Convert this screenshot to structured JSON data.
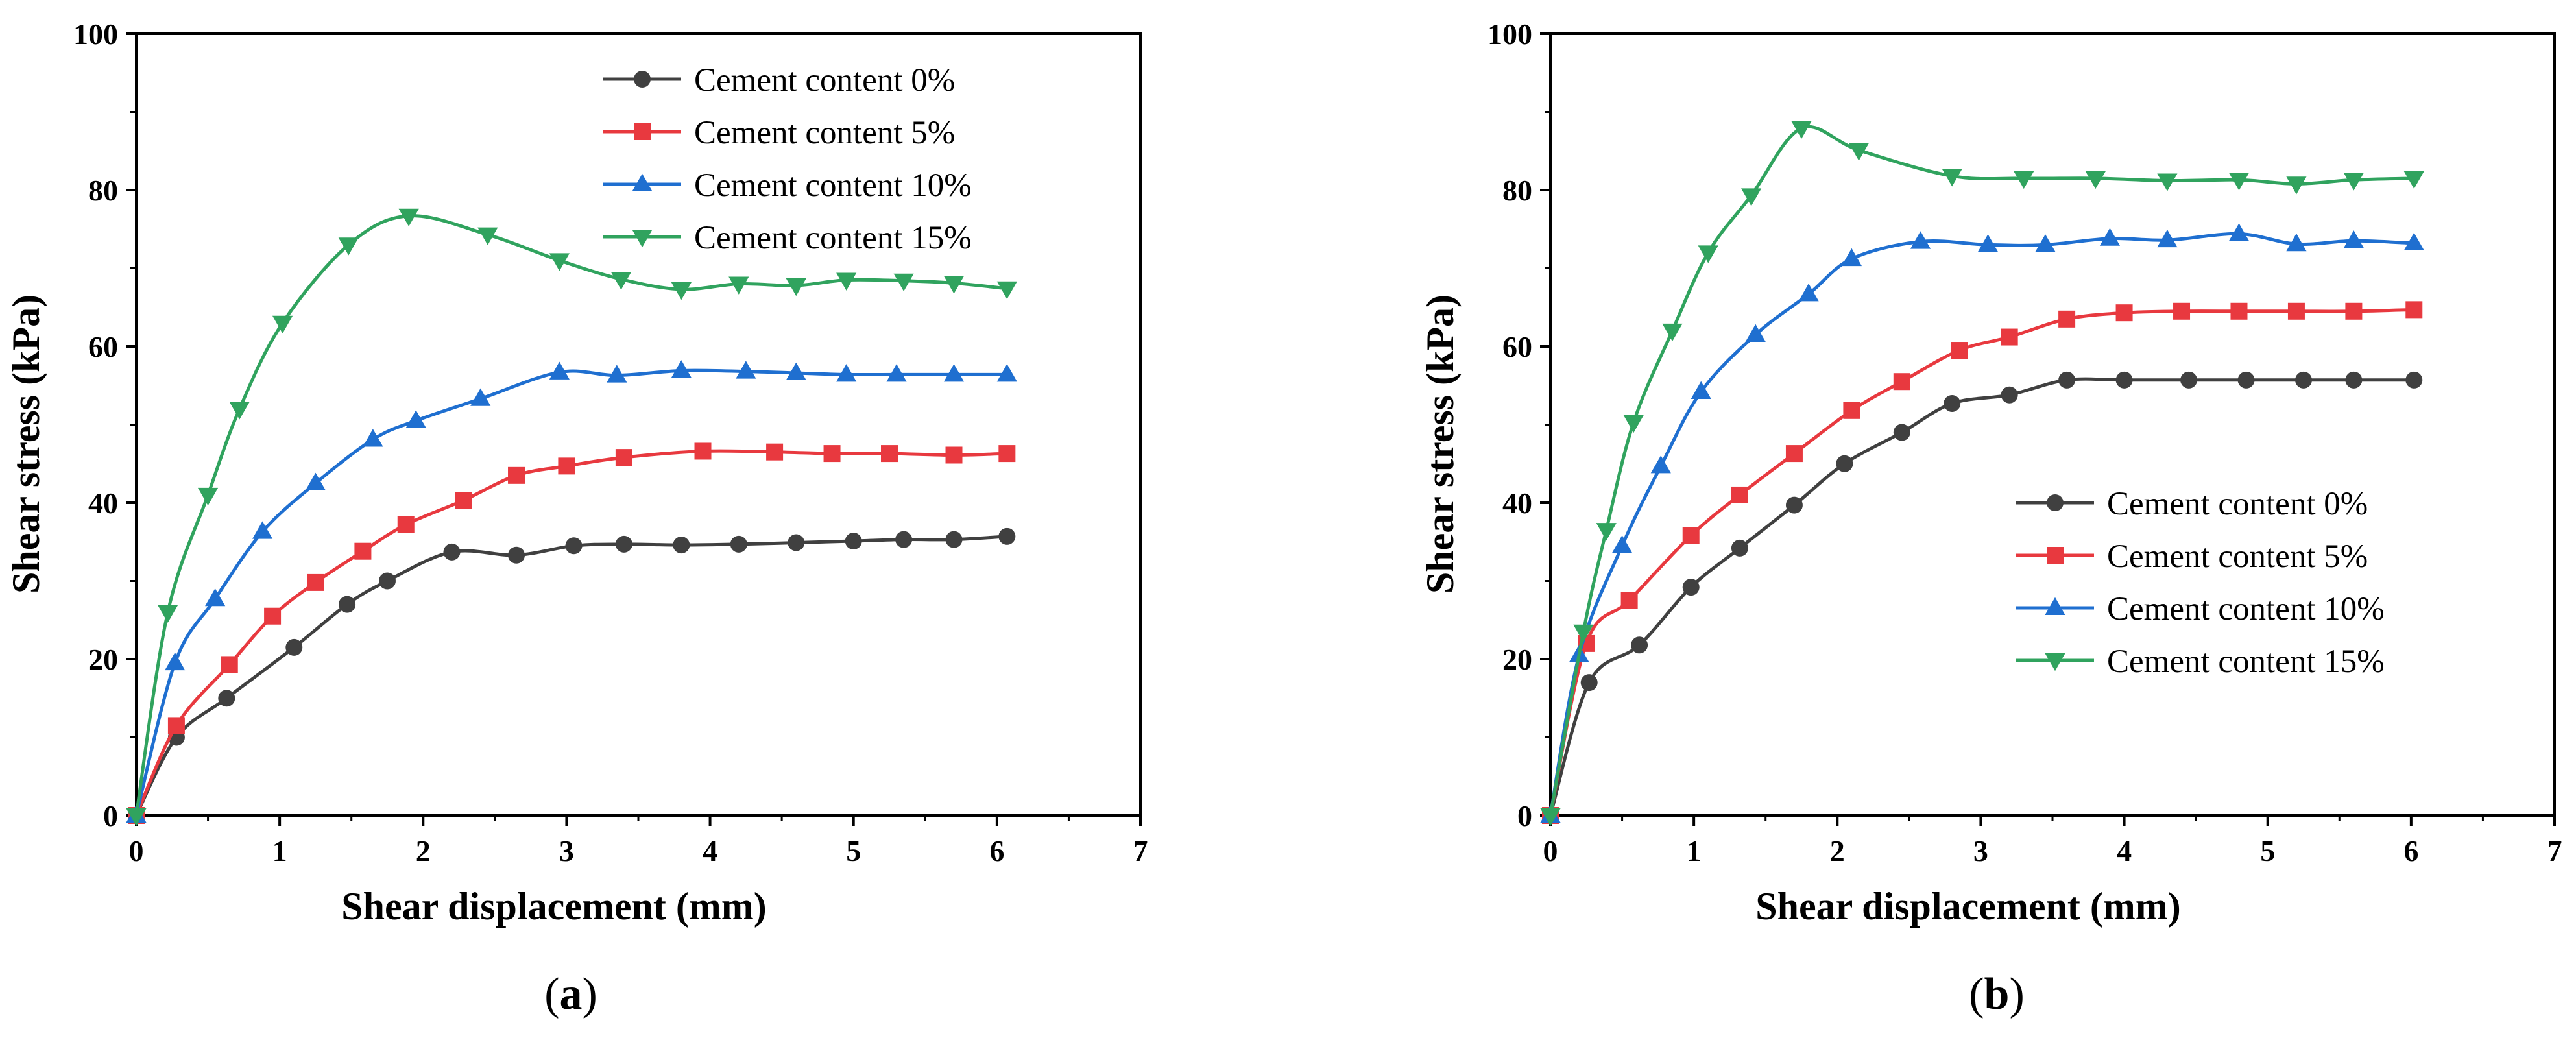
{
  "chart_data": [
    {
      "type": "line",
      "panel_label": "a",
      "xlabel": "Shear displacement (mm)",
      "ylabel": "Shear stress (kPa)",
      "xlim": [
        0,
        7
      ],
      "ylim": [
        0,
        100
      ],
      "xticks": [
        0,
        1,
        2,
        3,
        4,
        5,
        6,
        7
      ],
      "yticks": [
        0,
        20,
        40,
        60,
        80,
        100
      ],
      "legend_position": "top-right",
      "series": [
        {
          "name": "Cement content 0%",
          "color": "#404040",
          "marker": "circle",
          "x": [
            0,
            0.28,
            0.63,
            1.1,
            1.47,
            1.75,
            2.2,
            2.65,
            3.05,
            3.4,
            3.8,
            4.2,
            4.6,
            5.0,
            5.35,
            5.7,
            6.07
          ],
          "y": [
            0,
            10,
            15,
            21.5,
            27,
            30,
            33.7,
            33.3,
            34.5,
            34.7,
            34.6,
            34.7,
            34.9,
            35.1,
            35.3,
            35.3,
            35.7
          ]
        },
        {
          "name": "Cement content 5%",
          "color": "#e8393f",
          "marker": "square",
          "x": [
            0,
            0.28,
            0.65,
            0.95,
            1.25,
            1.58,
            1.88,
            2.28,
            2.65,
            3.0,
            3.4,
            3.95,
            4.45,
            4.85,
            5.25,
            5.7,
            6.07
          ],
          "y": [
            0,
            11.5,
            19.3,
            25.5,
            29.8,
            33.8,
            37.2,
            40.3,
            43.5,
            44.7,
            45.8,
            46.6,
            46.5,
            46.3,
            46.3,
            46.1,
            46.3
          ]
        },
        {
          "name": "Cement content 10%",
          "color": "#1f6fd0",
          "marker": "triangle-up",
          "x": [
            0,
            0.27,
            0.55,
            0.88,
            1.25,
            1.65,
            1.95,
            2.4,
            2.95,
            3.35,
            3.8,
            4.25,
            4.6,
            4.95,
            5.3,
            5.7,
            6.07
          ],
          "y": [
            0,
            19.5,
            27.7,
            36.3,
            42.5,
            48.1,
            50.5,
            53.3,
            56.7,
            56.3,
            56.9,
            56.8,
            56.6,
            56.4,
            56.4,
            56.4,
            56.4
          ]
        },
        {
          "name": "Cement content 15%",
          "color": "#30a35e",
          "marker": "triangle-down",
          "x": [
            0,
            0.22,
            0.5,
            0.72,
            1.02,
            1.48,
            1.9,
            2.45,
            2.95,
            3.38,
            3.8,
            4.2,
            4.6,
            4.95,
            5.35,
            5.7,
            6.07
          ],
          "y": [
            0,
            26,
            41,
            52,
            63,
            73,
            76.7,
            74.3,
            71,
            68.6,
            67.3,
            68,
            67.8,
            68.5,
            68.4,
            68.1,
            67.4
          ]
        }
      ]
    },
    {
      "type": "line",
      "panel_label": "b",
      "xlabel": "Shear displacement (mm)",
      "ylabel": "Shear stress (kPa)",
      "xlim": [
        0,
        7
      ],
      "ylim": [
        0,
        100
      ],
      "xticks": [
        0,
        1,
        2,
        3,
        4,
        5,
        6,
        7
      ],
      "yticks": [
        0,
        20,
        40,
        60,
        80,
        100
      ],
      "legend_position": "center-right",
      "series": [
        {
          "name": "Cement content 0%",
          "color": "#404040",
          "marker": "circle",
          "x": [
            0,
            0.27,
            0.62,
            0.98,
            1.32,
            1.7,
            2.05,
            2.45,
            2.8,
            3.2,
            3.6,
            4.0,
            4.45,
            4.85,
            5.25,
            5.6,
            6.02
          ],
          "y": [
            0,
            17,
            21.8,
            29.2,
            34.2,
            39.7,
            45,
            49,
            52.7,
            53.8,
            55.7,
            55.7,
            55.7,
            55.7,
            55.7,
            55.7,
            55.7
          ]
        },
        {
          "name": "Cement content 5%",
          "color": "#e8393f",
          "marker": "square",
          "x": [
            0,
            0.25,
            0.55,
            0.98,
            1.32,
            1.7,
            2.1,
            2.45,
            2.85,
            3.2,
            3.6,
            4.0,
            4.4,
            4.8,
            5.2,
            5.6,
            6.02
          ],
          "y": [
            0,
            22,
            27.5,
            35.8,
            41,
            46.3,
            51.8,
            55.5,
            59.5,
            61.2,
            63.5,
            64.3,
            64.5,
            64.5,
            64.5,
            64.5,
            64.7
          ]
        },
        {
          "name": "Cement content 10%",
          "color": "#1f6fd0",
          "marker": "triangle-up",
          "x": [
            0,
            0.2,
            0.5,
            0.77,
            1.05,
            1.43,
            1.8,
            2.1,
            2.58,
            3.05,
            3.45,
            3.9,
            4.3,
            4.8,
            5.2,
            5.6,
            6.02
          ],
          "y": [
            0,
            20.5,
            34.5,
            44.7,
            54.2,
            61.5,
            66.7,
            71.2,
            73.4,
            73,
            73,
            73.8,
            73.6,
            74.4,
            73.1,
            73.5,
            73.2
          ]
        },
        {
          "name": "Cement content 15%",
          "color": "#30a35e",
          "marker": "triangle-down",
          "x": [
            0,
            0.23,
            0.39,
            0.58,
            0.85,
            1.1,
            1.4,
            1.75,
            2.15,
            2.8,
            3.3,
            3.8,
            4.3,
            4.8,
            5.2,
            5.6,
            6.02
          ],
          "y": [
            0,
            23.5,
            36.5,
            50.3,
            62,
            72,
            79.3,
            87.9,
            85.1,
            81.8,
            81.5,
            81.5,
            81.2,
            81.3,
            80.8,
            81.3,
            81.5
          ]
        }
      ]
    }
  ]
}
